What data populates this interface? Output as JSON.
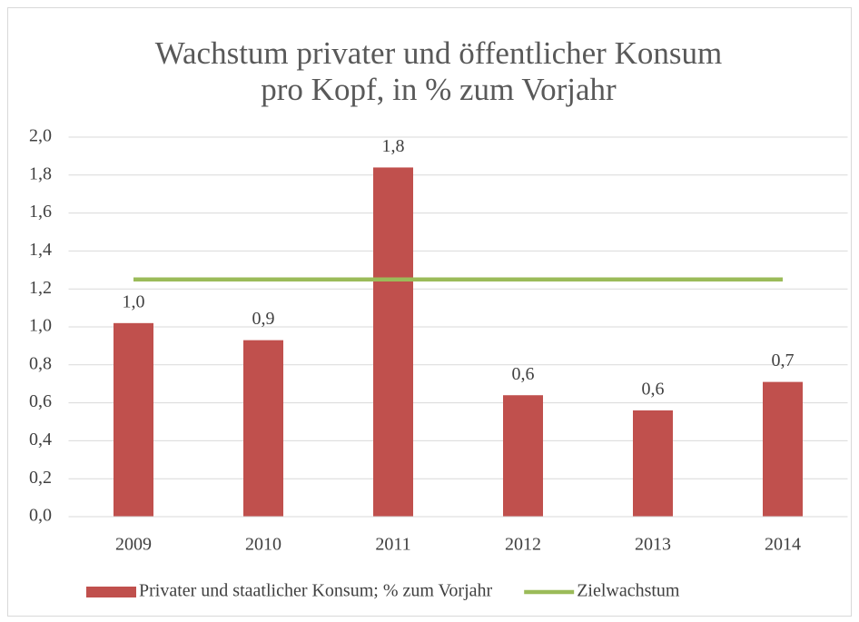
{
  "chart_data": {
    "type": "bar",
    "title": [
      "Wachstum privater und öffentlicher Konsum",
      "pro Kopf, in % zum Vorjahr"
    ],
    "categories": [
      "2009",
      "2010",
      "2011",
      "2012",
      "2013",
      "2014"
    ],
    "series": [
      {
        "name": "Privater und staatlicher Konsum; % zum Vorjahr",
        "type": "bar",
        "color": "#c0504d",
        "values": [
          1.02,
          0.93,
          1.84,
          0.64,
          0.56,
          0.71
        ],
        "value_labels": [
          "1,0",
          "0,9",
          "1,8",
          "0,6",
          "0,6",
          "0,7"
        ]
      },
      {
        "name": "Zielwachstum",
        "type": "line",
        "color": "#9bbb59",
        "values": [
          1.25,
          1.25,
          1.25,
          1.25,
          1.25,
          1.25
        ]
      }
    ],
    "ylim": [
      0,
      2
    ],
    "yticks": [
      {
        "value": 0,
        "label": "0,0"
      },
      {
        "value": 0.2,
        "label": "0,2"
      },
      {
        "value": 0.4,
        "label": "0,4"
      },
      {
        "value": 0.6,
        "label": "0,6"
      },
      {
        "value": 0.8,
        "label": "0,8"
      },
      {
        "value": 1,
        "label": "1,0"
      },
      {
        "value": 1.2,
        "label": "1,2"
      },
      {
        "value": 1.4,
        "label": "1,4"
      },
      {
        "value": 1.6,
        "label": "1,6"
      },
      {
        "value": 1.8,
        "label": "1,8"
      },
      {
        "value": 2,
        "label": "2,0"
      }
    ],
    "grid": true,
    "legend": "bottom"
  }
}
